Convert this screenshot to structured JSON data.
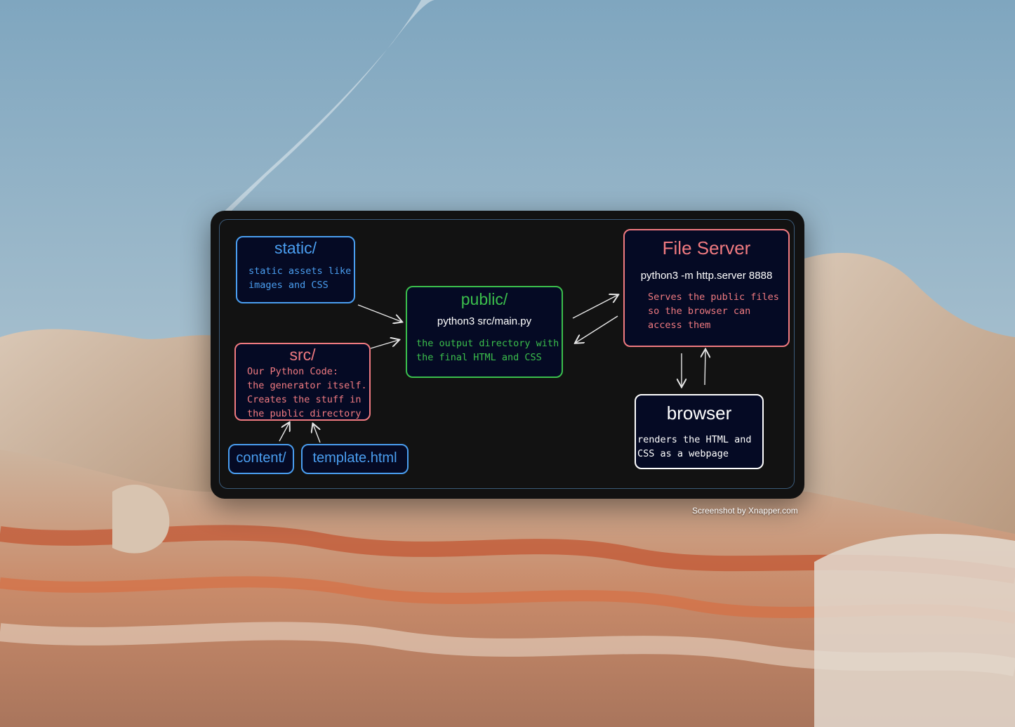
{
  "diagram": {
    "static": {
      "title": "static/",
      "desc": [
        "static assets like",
        "images and CSS"
      ]
    },
    "src": {
      "title": "src/",
      "desc": [
        "Our Python Code:",
        "the generator itself.",
        "Creates the stuff in",
        "the public directory"
      ]
    },
    "content": {
      "title": "content/"
    },
    "template": {
      "title": "template.html"
    },
    "public": {
      "title": "public/",
      "command": "python3 src/main.py",
      "desc": [
        "the output directory with",
        "the final HTML and CSS"
      ]
    },
    "fileserver": {
      "title": "File Server",
      "command": "python3 -m http.server 8888",
      "desc": [
        "Serves the public files",
        "so the browser can",
        "access them"
      ]
    },
    "browser": {
      "title": "browser",
      "desc": [
        "renders the HTML and",
        "CSS as a webpage"
      ]
    }
  },
  "credit": "Screenshot by Xnapper.com",
  "colors": {
    "blue": "#4a9ef0",
    "red": "#f07a80",
    "green": "#3bbf4c",
    "white": "#ffffff",
    "box_fill": "#050a24",
    "card": "#121212"
  }
}
